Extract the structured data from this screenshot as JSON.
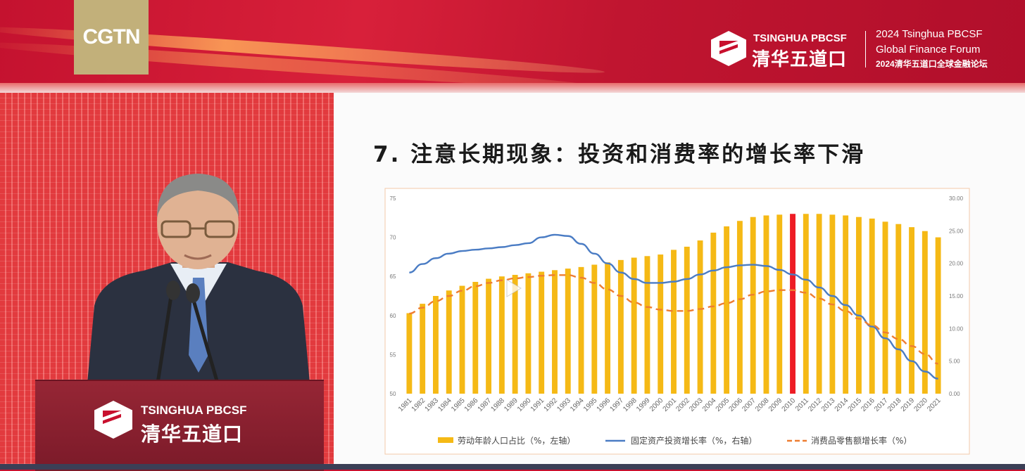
{
  "banner": {
    "channel_logo": "CGTN",
    "org_en": "TSINGHUA PBCSF",
    "org_cn": "清华五道口",
    "forum_line1": "2024 Tsinghua PBCSF",
    "forum_line2": "Global Finance Forum",
    "forum_line3": "2024清华五道口全球金融论坛"
  },
  "podium": {
    "org_en": "TSINGHUA PBCSF",
    "org_cn": "清华五道口"
  },
  "slide": {
    "title": "7. 注意长期现象：投资和消费率的增长率下滑"
  },
  "colors": {
    "bar": "#f5b915",
    "highlight_bar": "#ee1c25",
    "line_investment": "#4a7cc4",
    "line_consumption": "#ee7d31"
  },
  "chart_data": {
    "type": "bar",
    "x": [
      "1981",
      "1982",
      "1983",
      "1984",
      "1985",
      "1986",
      "1987",
      "1988",
      "1989",
      "1990",
      "1991",
      "1992",
      "1993",
      "1994",
      "1995",
      "1996",
      "1997",
      "1998",
      "1999",
      "2000",
      "2001",
      "2002",
      "2003",
      "2004",
      "2005",
      "2006",
      "2007",
      "2008",
      "2009",
      "2010",
      "2011",
      "2012",
      "2013",
      "2014",
      "2015",
      "2016",
      "2017",
      "2018",
      "2019",
      "2020",
      "2021"
    ],
    "highlight": "2010",
    "y_left": {
      "ticks": [
        50,
        55,
        60,
        65,
        70,
        75
      ],
      "range": [
        50,
        75
      ]
    },
    "y_right": {
      "ticks": [
        "0.00",
        "5.00",
        "10.00",
        "15.00",
        "20.00",
        "25.00",
        "30.00"
      ],
      "range": [
        0,
        30
      ]
    },
    "series": [
      {
        "name": "劳动年龄人口占比（%，左轴）",
        "type": "bar",
        "axis": "left",
        "values": [
          60.3,
          61.5,
          62.5,
          63.2,
          63.8,
          64.3,
          64.7,
          65.0,
          65.2,
          65.4,
          65.6,
          65.8,
          66.0,
          66.2,
          66.5,
          66.8,
          67.1,
          67.4,
          67.6,
          67.8,
          68.4,
          68.8,
          69.6,
          70.6,
          71.4,
          72.1,
          72.6,
          72.8,
          72.9,
          73.0,
          73.0,
          73.0,
          72.9,
          72.8,
          72.6,
          72.4,
          72.0,
          71.7,
          71.3,
          70.8,
          70.0
        ]
      },
      {
        "name": "固定资产投资增长率（%，右轴）",
        "type": "line",
        "axis": "right",
        "values": [
          18.6,
          19.9,
          20.8,
          21.5,
          21.9,
          22.1,
          22.3,
          22.5,
          22.8,
          23.1,
          24.0,
          24.4,
          24.2,
          23.0,
          21.5,
          20.0,
          18.6,
          17.6,
          17.0,
          17.0,
          17.2,
          17.6,
          18.3,
          18.9,
          19.4,
          19.7,
          19.8,
          19.6,
          19.0,
          18.3,
          17.5,
          16.3,
          15.0,
          13.6,
          12.0,
          10.3,
          8.5,
          6.8,
          5.0,
          3.4,
          2.3
        ]
      },
      {
        "name": "消费品零售额增长率（%）",
        "type": "line",
        "style": "dashed",
        "axis": "right",
        "values": [
          12.3,
          13.2,
          14.2,
          15.0,
          15.8,
          16.5,
          17.0,
          17.4,
          17.7,
          17.9,
          18.1,
          18.2,
          18.2,
          17.8,
          17.0,
          16.0,
          15.0,
          14.0,
          13.3,
          12.9,
          12.7,
          12.7,
          13.0,
          13.4,
          13.9,
          14.5,
          15.2,
          15.7,
          15.9,
          15.9,
          15.5,
          14.6,
          13.7,
          12.7,
          11.5,
          10.5,
          9.4,
          8.4,
          7.3,
          6.1,
          4.6
        ]
      }
    ]
  }
}
